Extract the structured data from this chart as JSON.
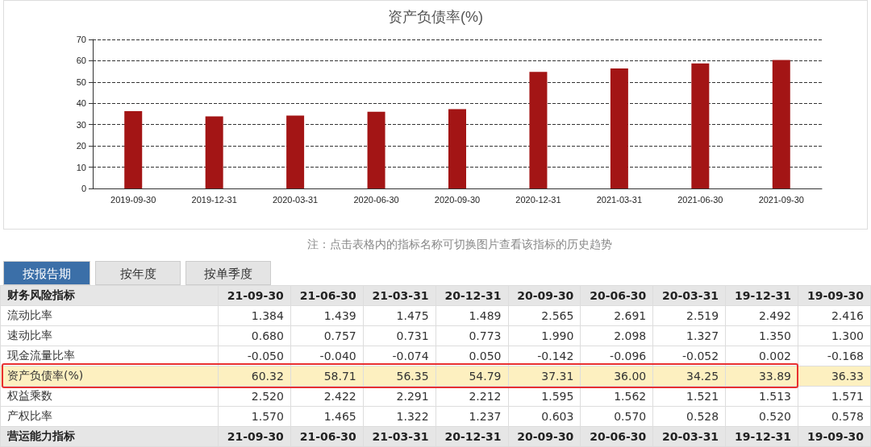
{
  "chart_data": [
    {
      "type": "bar",
      "title": "资产负债率(%)",
      "categories": [
        "2019-09-30",
        "2019-12-31",
        "2020-03-31",
        "2020-06-30",
        "2020-09-30",
        "2020-12-31",
        "2021-03-31",
        "2021-06-30",
        "2021-09-30"
      ],
      "values": [
        36.33,
        33.89,
        34.25,
        36.0,
        37.31,
        54.79,
        56.35,
        58.71,
        60.32
      ],
      "color": "#a31515",
      "ylim": [
        0,
        70
      ],
      "yticks": [
        0,
        10,
        20,
        30,
        40,
        50,
        60,
        70
      ],
      "grid": "y",
      "annotations": [
        "注：点击表格内的指标名称可切换图片查看该指标的历史趋势"
      ]
    },
    {
      "type": "other",
      "title": "财务风险指标",
      "subtitle": "营运能力指标",
      "annotations": [
        "按报告期",
        "按年度",
        "按单季度"
      ],
      "categories": [
        "21-09-30",
        "21-06-30",
        "21-03-31",
        "20-12-31",
        "20-09-30",
        "20-06-30",
        "20-03-31",
        "19-12-31",
        "19-09-30"
      ],
      "series": [
        {
          "name": "流动比率",
          "values": [
            1.384,
            1.439,
            1.475,
            1.489,
            2.565,
            2.691,
            2.519,
            2.492,
            2.416
          ],
          "value_labels": [
            "1.384",
            "1.439",
            "1.475",
            "1.489",
            "2.565",
            "2.691",
            "2.519",
            "2.492",
            "2.416"
          ]
        },
        {
          "name": "速动比率",
          "values": [
            0.68,
            0.757,
            0.731,
            0.773,
            1.99,
            2.098,
            1.327,
            1.35,
            1.3
          ],
          "value_labels": [
            "0.680",
            "0.757",
            "0.731",
            "0.773",
            "1.990",
            "2.098",
            "1.327",
            "1.350",
            "1.300"
          ]
        },
        {
          "name": "现金流量比率",
          "values": [
            -0.05,
            -0.04,
            -0.074,
            0.05,
            -0.142,
            -0.096,
            -0.052,
            0.002,
            -0.168
          ],
          "value_labels": [
            "-0.050",
            "-0.040",
            "-0.074",
            "0.050",
            "-0.142",
            "-0.096",
            "-0.052",
            "0.002",
            "-0.168"
          ]
        },
        {
          "name": "资产负债率(%)",
          "color": "#fdf0c0",
          "values": [
            60.32,
            58.71,
            56.35,
            54.79,
            37.31,
            36.0,
            34.25,
            33.89,
            36.33
          ],
          "value_labels": [
            "60.32",
            "58.71",
            "56.35",
            "54.79",
            "37.31",
            "36.00",
            "34.25",
            "33.89",
            "36.33"
          ]
        },
        {
          "name": "权益乘数",
          "values": [
            2.52,
            2.422,
            2.291,
            2.212,
            1.595,
            1.562,
            1.521,
            1.513,
            1.571
          ],
          "value_labels": [
            "2.520",
            "2.422",
            "2.291",
            "2.212",
            "1.595",
            "1.562",
            "1.521",
            "1.513",
            "1.571"
          ]
        },
        {
          "name": "产权比率",
          "values": [
            1.57,
            1.465,
            1.322,
            1.237,
            0.603,
            0.57,
            0.528,
            0.52,
            0.578
          ],
          "value_labels": [
            "1.570",
            "1.465",
            "1.322",
            "1.237",
            "0.603",
            "0.570",
            "0.528",
            "0.520",
            "0.578"
          ]
        }
      ]
    }
  ]
}
